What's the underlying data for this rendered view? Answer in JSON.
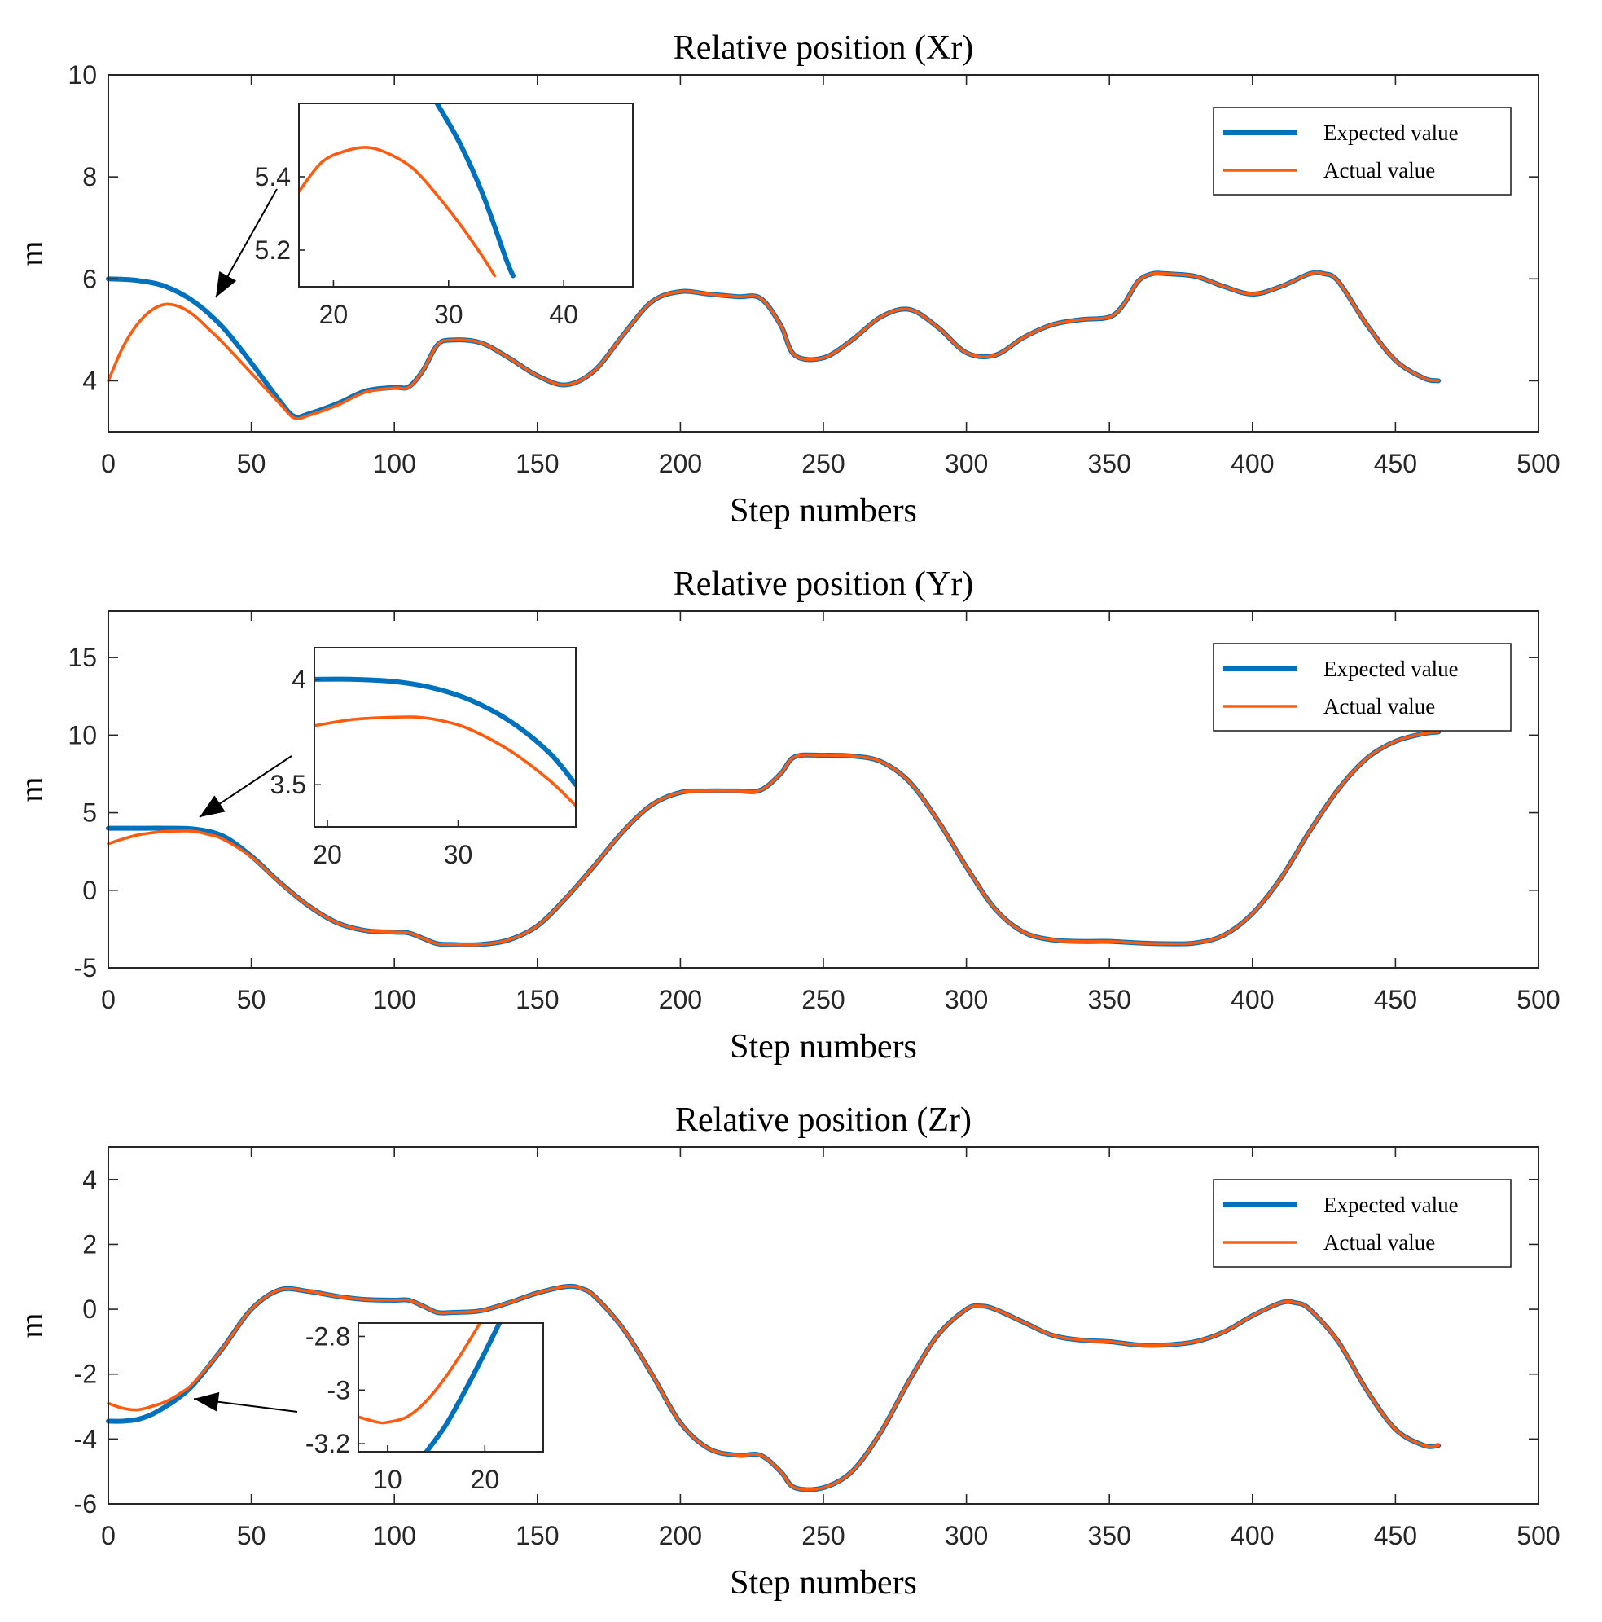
{
  "chart_data": [
    {
      "type": "line",
      "title": "Relative position (Xr)",
      "xlabel": "Step numbers",
      "ylabel": "m",
      "xlim": [
        0,
        500
      ],
      "ylim": [
        3,
        10
      ],
      "xticks": [
        0,
        50,
        100,
        150,
        200,
        250,
        300,
        350,
        400,
        450,
        500
      ],
      "yticks": [
        4,
        6,
        8,
        10
      ],
      "legend": "top-right",
      "series": [
        {
          "name": "Expected value",
          "color": "#0072BD",
          "x": [
            0,
            10,
            20,
            30,
            40,
            50,
            60,
            65,
            70,
            80,
            90,
            100,
            105,
            110,
            115,
            120,
            130,
            140,
            150,
            160,
            170,
            180,
            190,
            200,
            210,
            220,
            228,
            235,
            240,
            250,
            260,
            270,
            280,
            290,
            300,
            310,
            320,
            330,
            340,
            350,
            355,
            360,
            365,
            370,
            380,
            390,
            400,
            410,
            420,
            425,
            430,
            440,
            450,
            460,
            465
          ],
          "y": [
            6.0,
            5.97,
            5.85,
            5.55,
            5.05,
            4.35,
            3.6,
            3.3,
            3.35,
            3.55,
            3.8,
            3.87,
            3.88,
            4.2,
            4.7,
            4.8,
            4.75,
            4.45,
            4.1,
            3.92,
            4.2,
            4.9,
            5.55,
            5.75,
            5.7,
            5.65,
            5.62,
            5.1,
            4.5,
            4.45,
            4.8,
            5.25,
            5.4,
            5.05,
            4.55,
            4.5,
            4.85,
            5.1,
            5.2,
            5.25,
            5.5,
            5.95,
            6.1,
            6.1,
            6.05,
            5.85,
            5.7,
            5.85,
            6.1,
            6.1,
            5.95,
            5.1,
            4.4,
            4.05,
            4.0
          ]
        },
        {
          "name": "Actual value",
          "color": "#FF5A0E",
          "x": [
            0,
            5,
            10,
            15,
            20,
            25,
            30,
            35,
            40,
            50,
            60,
            65,
            70,
            80,
            90,
            100,
            105,
            110,
            115,
            120,
            130,
            140,
            150,
            160,
            170,
            180,
            190,
            200,
            210,
            220,
            228,
            235,
            240,
            250,
            260,
            270,
            280,
            290,
            300,
            310,
            320,
            330,
            340,
            350,
            355,
            360,
            365,
            370,
            380,
            390,
            400,
            410,
            420,
            425,
            430,
            440,
            450,
            460,
            465
          ],
          "y": [
            4.0,
            4.65,
            5.1,
            5.38,
            5.5,
            5.45,
            5.28,
            5.02,
            4.75,
            4.15,
            3.55,
            3.27,
            3.32,
            3.52,
            3.78,
            3.86,
            3.87,
            4.2,
            4.7,
            4.8,
            4.75,
            4.45,
            4.1,
            3.92,
            4.2,
            4.9,
            5.55,
            5.75,
            5.7,
            5.65,
            5.62,
            5.1,
            4.5,
            4.45,
            4.8,
            5.25,
            5.4,
            5.05,
            4.55,
            4.5,
            4.85,
            5.1,
            5.2,
            5.25,
            5.5,
            5.95,
            6.1,
            6.1,
            6.05,
            5.85,
            5.7,
            5.85,
            6.1,
            6.1,
            5.95,
            5.1,
            4.4,
            4.05,
            4.0
          ]
        }
      ],
      "inset": {
        "xlim": [
          17,
          46
        ],
        "ylim": [
          5.1,
          5.6
        ],
        "xticks": [
          20,
          30,
          40
        ],
        "yticks": [
          5.2,
          5.4
        ],
        "series": [
          {
            "name": "Expected value",
            "x": [
              29,
              31,
              33,
              35,
              35.6
            ],
            "y": [
              5.6,
              5.49,
              5.35,
              5.175,
              5.13
            ]
          },
          {
            "name": "Actual value",
            "x": [
              17,
              19,
              21,
              23,
              25,
              27,
              29,
              31,
              33,
              34
            ],
            "y": [
              5.36,
              5.44,
              5.47,
              5.48,
              5.46,
              5.42,
              5.35,
              5.27,
              5.18,
              5.13
            ]
          }
        ]
      }
    },
    {
      "type": "line",
      "title": "Relative position (Yr)",
      "xlabel": "Step numbers",
      "ylabel": "m",
      "xlim": [
        0,
        500
      ],
      "ylim": [
        -5,
        18
      ],
      "xticks": [
        0,
        50,
        100,
        150,
        200,
        250,
        300,
        350,
        400,
        450,
        500
      ],
      "yticks": [
        -5,
        0,
        5,
        10,
        15
      ],
      "legend": "top-right",
      "series": [
        {
          "name": "Expected value",
          "color": "#0072BD",
          "x": [
            0,
            10,
            20,
            30,
            40,
            50,
            60,
            70,
            80,
            90,
            100,
            105,
            110,
            115,
            120,
            130,
            140,
            150,
            160,
            170,
            180,
            190,
            200,
            210,
            220,
            228,
            235,
            240,
            250,
            260,
            270,
            280,
            290,
            300,
            310,
            320,
            330,
            340,
            350,
            360,
            370,
            380,
            390,
            400,
            410,
            420,
            430,
            440,
            450,
            460,
            465
          ],
          "y": [
            4.0,
            4.0,
            4.0,
            3.95,
            3.5,
            2.2,
            0.5,
            -1.0,
            -2.1,
            -2.6,
            -2.7,
            -2.75,
            -3.1,
            -3.45,
            -3.5,
            -3.5,
            -3.2,
            -2.3,
            -0.5,
            1.6,
            3.8,
            5.5,
            6.3,
            6.4,
            6.4,
            6.45,
            7.5,
            8.6,
            8.7,
            8.65,
            8.3,
            7.0,
            4.5,
            1.5,
            -1.2,
            -2.7,
            -3.2,
            -3.3,
            -3.3,
            -3.4,
            -3.45,
            -3.4,
            -2.9,
            -1.5,
            0.8,
            3.8,
            6.5,
            8.5,
            9.6,
            10.1,
            10.2
          ]
        },
        {
          "name": "Actual value",
          "color": "#FF5A0E",
          "x": [
            0,
            5,
            10,
            15,
            20,
            25,
            30,
            35,
            40,
            50,
            60,
            70,
            80,
            90,
            100,
            105,
            110,
            115,
            120,
            130,
            140,
            150,
            160,
            170,
            180,
            190,
            200,
            210,
            220,
            228,
            235,
            240,
            250,
            260,
            270,
            280,
            290,
            300,
            310,
            320,
            330,
            340,
            350,
            360,
            370,
            380,
            390,
            400,
            410,
            420,
            430,
            440,
            450,
            460,
            465
          ],
          "y": [
            3.0,
            3.3,
            3.55,
            3.7,
            3.8,
            3.82,
            3.8,
            3.6,
            3.3,
            2.15,
            0.48,
            -1.0,
            -2.1,
            -2.6,
            -2.7,
            -2.75,
            -3.1,
            -3.45,
            -3.5,
            -3.5,
            -3.2,
            -2.3,
            -0.5,
            1.6,
            3.8,
            5.5,
            6.3,
            6.4,
            6.4,
            6.45,
            7.5,
            8.6,
            8.7,
            8.65,
            8.3,
            7.0,
            4.5,
            1.5,
            -1.2,
            -2.7,
            -3.2,
            -3.3,
            -3.3,
            -3.4,
            -3.45,
            -3.4,
            -2.9,
            -1.5,
            0.8,
            3.8,
            6.5,
            8.5,
            9.6,
            10.1,
            10.2
          ]
        }
      ],
      "inset": {
        "xlim": [
          19,
          39
        ],
        "ylim": [
          3.3,
          4.15
        ],
        "xticks": [
          20,
          30
        ],
        "yticks": [
          3.5,
          4
        ],
        "series": [
          {
            "name": "Expected value",
            "x": [
              19,
              22,
              25,
              28,
              31,
              34,
              37,
              39
            ],
            "y": [
              4.0,
              4.0,
              3.99,
              3.96,
              3.9,
              3.8,
              3.65,
              3.5
            ]
          },
          {
            "name": "Actual value",
            "x": [
              19,
              22,
              25,
              27,
              29,
              31,
              34,
              37,
              39
            ],
            "y": [
              3.78,
              3.81,
              3.82,
              3.82,
              3.8,
              3.76,
              3.66,
              3.52,
              3.4
            ]
          }
        ]
      }
    },
    {
      "type": "line",
      "title": "Relative position (Zr)",
      "xlabel": "Step numbers",
      "ylabel": "m",
      "xlim": [
        0,
        500
      ],
      "ylim": [
        -6,
        5
      ],
      "xticks": [
        0,
        50,
        100,
        150,
        200,
        250,
        300,
        350,
        400,
        450,
        500
      ],
      "yticks": [
        -6,
        -4,
        -2,
        0,
        2,
        4
      ],
      "legend": "top-right",
      "series": [
        {
          "name": "Expected value",
          "color": "#0072BD",
          "x": [
            0,
            5,
            10,
            15,
            20,
            25,
            30,
            40,
            50,
            60,
            70,
            80,
            90,
            100,
            105,
            110,
            115,
            120,
            130,
            140,
            150,
            160,
            165,
            170,
            180,
            190,
            200,
            210,
            220,
            228,
            235,
            240,
            250,
            260,
            270,
            280,
            290,
            300,
            305,
            310,
            320,
            330,
            340,
            350,
            360,
            370,
            380,
            390,
            400,
            410,
            415,
            420,
            430,
            440,
            450,
            460,
            465
          ],
          "y": [
            -3.45,
            -3.45,
            -3.4,
            -3.25,
            -3.0,
            -2.7,
            -2.3,
            -1.2,
            0.0,
            0.6,
            0.55,
            0.4,
            0.3,
            0.28,
            0.28,
            0.1,
            -0.1,
            -0.1,
            -0.05,
            0.2,
            0.5,
            0.7,
            0.65,
            0.4,
            -0.6,
            -2.0,
            -3.5,
            -4.3,
            -4.5,
            -4.5,
            -5.0,
            -5.5,
            -5.5,
            -5.0,
            -3.8,
            -2.2,
            -0.8,
            0.0,
            0.1,
            0.0,
            -0.4,
            -0.8,
            -0.95,
            -1.0,
            -1.1,
            -1.1,
            -1.0,
            -0.7,
            -0.2,
            0.2,
            0.2,
            0.0,
            -1.0,
            -2.5,
            -3.7,
            -4.2,
            -4.2
          ]
        },
        {
          "name": "Actual value",
          "color": "#FF5A0E",
          "x": [
            0,
            5,
            10,
            15,
            20,
            25,
            30,
            40,
            50,
            60,
            70,
            80,
            90,
            100,
            105,
            110,
            115,
            120,
            130,
            140,
            150,
            160,
            165,
            170,
            180,
            190,
            200,
            210,
            220,
            228,
            235,
            240,
            250,
            260,
            270,
            280,
            290,
            300,
            305,
            310,
            320,
            330,
            340,
            350,
            360,
            370,
            380,
            390,
            400,
            410,
            415,
            420,
            430,
            440,
            450,
            460,
            465
          ],
          "y": [
            -2.9,
            -3.05,
            -3.1,
            -3.0,
            -2.85,
            -2.6,
            -2.25,
            -1.2,
            0.0,
            0.6,
            0.55,
            0.4,
            0.3,
            0.28,
            0.28,
            0.1,
            -0.1,
            -0.1,
            -0.05,
            0.2,
            0.5,
            0.7,
            0.65,
            0.4,
            -0.6,
            -2.0,
            -3.5,
            -4.3,
            -4.5,
            -4.5,
            -5.0,
            -5.5,
            -5.5,
            -5.0,
            -3.8,
            -2.2,
            -0.8,
            0.0,
            0.1,
            0.0,
            -0.4,
            -0.8,
            -0.95,
            -1.0,
            -1.1,
            -1.1,
            -1.0,
            -0.7,
            -0.2,
            0.2,
            0.2,
            0.0,
            -1.0,
            -2.5,
            -3.7,
            -4.2,
            -4.2
          ]
        }
      ],
      "inset": {
        "xlim": [
          7,
          26
        ],
        "ylim": [
          -3.23,
          -2.75
        ],
        "xticks": [
          10,
          20
        ],
        "yticks": [
          -3.2,
          -3,
          -2.8
        ],
        "series": [
          {
            "name": "Expected value",
            "x": [
              14,
              16,
              18,
              20,
              21.5
            ],
            "y": [
              -3.23,
              -3.13,
              -3.0,
              -2.86,
              -2.75
            ]
          },
          {
            "name": "Actual value",
            "x": [
              7,
              9,
              10,
              12,
              14,
              16,
              18,
              19.5
            ],
            "y": [
              -3.1,
              -3.12,
              -3.12,
              -3.1,
              -3.04,
              -2.95,
              -2.84,
              -2.75
            ]
          }
        ]
      }
    }
  ]
}
